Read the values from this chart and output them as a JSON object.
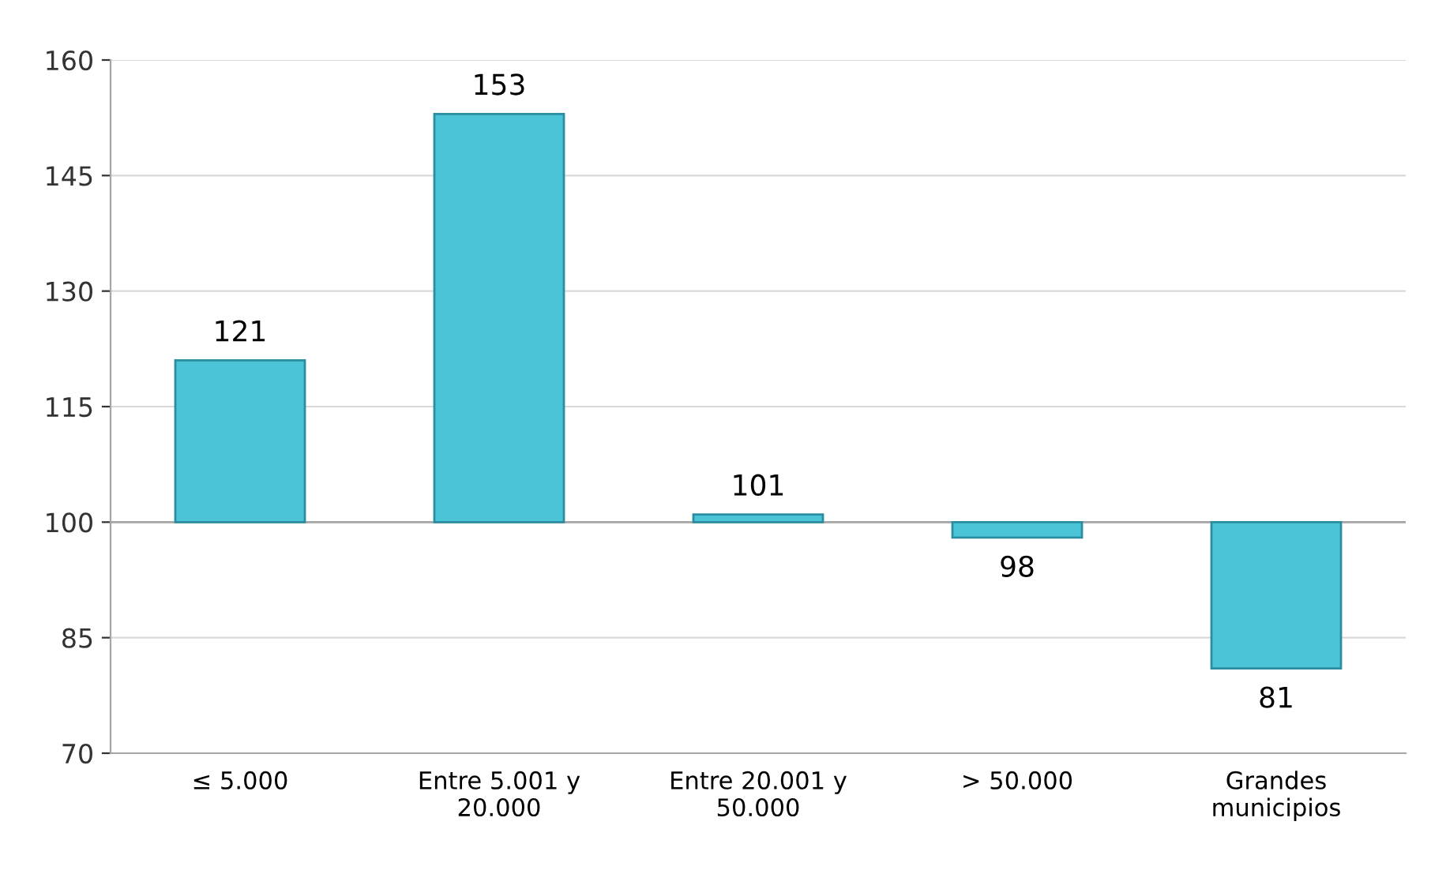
{
  "chart_data": {
    "type": "bar",
    "categories": [
      "≤ 5.000",
      "Entre 5.001 y\n20.000",
      "Entre 20.001 y\n50.000",
      "> 50.000",
      "Grandes\nmunicipios"
    ],
    "base": [
      100,
      100,
      100,
      100,
      100
    ],
    "values": [
      21,
      53,
      1,
      -2,
      -19
    ],
    "value_labels": [
      "121",
      "153",
      "101",
      "98",
      "81"
    ],
    "color": "#4bc4d8",
    "ylim": [
      70,
      160
    ],
    "yticks": [
      70,
      85,
      100,
      115,
      130,
      145,
      160
    ],
    "grid": "y",
    "ref_lines": [
      {
        "axis": "y",
        "value": 100,
        "color": "#a6a6a6"
      }
    ]
  }
}
